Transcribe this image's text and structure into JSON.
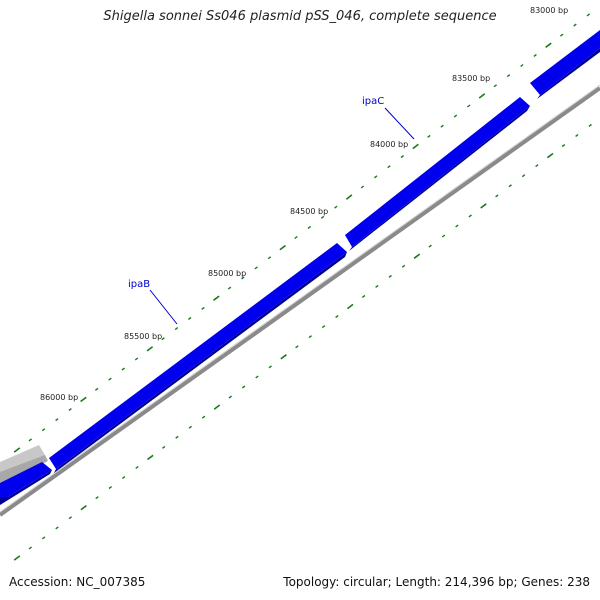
{
  "title": "Shigella sonnei Ss046 plasmid pSS_046, complete sequence",
  "accession": "Accession: NC_007385",
  "summary": "Topology: circular; Length: 214,396 bp; Genes: 238",
  "position_labels": [
    "83000 bp",
    "83500 bp",
    "84000 bp",
    "84500 bp",
    "85000 bp",
    "85500 bp",
    "86000 bp"
  ],
  "genes": [
    {
      "name": "ipaC",
      "strand": "forward",
      "color": "#0000ee"
    },
    {
      "name": "ipaB",
      "strand": "forward",
      "color": "#0000ee"
    }
  ],
  "colors": {
    "forward_gene": "#0000ee",
    "other_feature": "#c8c8c8",
    "backbone": "#888888",
    "tick": "#1a7a1a",
    "label_line": "#0000cc"
  }
}
